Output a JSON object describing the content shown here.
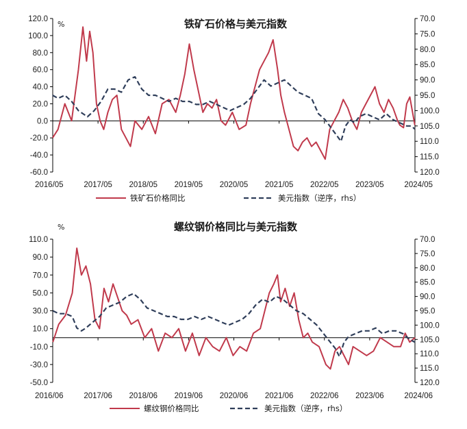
{
  "colors": {
    "primary_series": "#C0394B",
    "secondary_series": "#2F3E5A",
    "axis": "#000000"
  },
  "chart_data": [
    {
      "type": "line",
      "title": "铁矿石价格与美元指数",
      "left_unit": "%",
      "left_ylim": [
        -60,
        120
      ],
      "left_ticks": [
        "-60.0",
        "-40.0",
        "-20.0",
        "0.0",
        "20.0",
        "40.0",
        "60.0",
        "80.0",
        "100.0",
        "120.0"
      ],
      "right_ylim": [
        70,
        120
      ],
      "right_inverted": true,
      "right_ticks": [
        "70.0",
        "75.0",
        "80.0",
        "85.0",
        "90.0",
        "95.0",
        "100.0",
        "105.0",
        "110.0",
        "115.0",
        "120.0"
      ],
      "x_ticks": [
        "2016/05",
        "2017/05",
        "2018/05",
        "2019/05",
        "2020/05",
        "2021/05",
        "2022/05",
        "2023/05",
        "2024/05"
      ],
      "x_range": [
        2016.333,
        2024.333
      ],
      "legend": [
        "铁矿石价格同比",
        "美元指数（逆序，rhs）"
      ],
      "series": [
        {
          "name": "铁矿石价格同比",
          "axis": "left",
          "style": "solid",
          "x": [
            2016.33,
            2016.45,
            2016.6,
            2016.75,
            2016.9,
            2017.0,
            2017.08,
            2017.15,
            2017.22,
            2017.3,
            2017.38,
            2017.46,
            2017.55,
            2017.65,
            2017.75,
            2017.85,
            2017.95,
            2018.05,
            2018.15,
            2018.3,
            2018.45,
            2018.6,
            2018.75,
            2018.9,
            2019.05,
            2019.15,
            2019.25,
            2019.35,
            2019.45,
            2019.55,
            2019.65,
            2019.75,
            2019.85,
            2019.95,
            2020.05,
            2020.15,
            2020.3,
            2020.45,
            2020.6,
            2020.7,
            2020.8,
            2020.9,
            2021.0,
            2021.1,
            2021.2,
            2021.3,
            2021.37,
            2021.45,
            2021.55,
            2021.65,
            2021.75,
            2021.85,
            2021.95,
            2022.05,
            2022.15,
            2022.25,
            2022.35,
            2022.45,
            2022.55,
            2022.65,
            2022.75,
            2022.85,
            2022.95,
            2023.05,
            2023.15,
            2023.25,
            2023.35,
            2023.45,
            2023.55,
            2023.65,
            2023.75,
            2023.85,
            2023.95,
            2024.0,
            2024.08,
            2024.15,
            2024.22,
            2024.28,
            2024.33
          ],
          "values": [
            -20,
            -10,
            20,
            0,
            60,
            110,
            70,
            105,
            80,
            20,
            0,
            -10,
            10,
            25,
            30,
            -10,
            -20,
            -30,
            0,
            -10,
            5,
            -15,
            20,
            25,
            10,
            30,
            55,
            90,
            60,
            35,
            10,
            20,
            15,
            25,
            0,
            -5,
            10,
            -10,
            -5,
            20,
            40,
            60,
            70,
            80,
            95,
            60,
            30,
            10,
            -10,
            -30,
            -35,
            -25,
            -20,
            -30,
            -25,
            -35,
            -45,
            -10,
            0,
            10,
            25,
            15,
            0,
            -10,
            10,
            20,
            30,
            40,
            20,
            10,
            25,
            15,
            0,
            -5,
            -8,
            20,
            28,
            10,
            -5
          ]
        },
        {
          "name": "美元指数（逆序，rhs）",
          "axis": "right",
          "style": "dashed",
          "x": [
            2016.33,
            2016.45,
            2016.6,
            2016.75,
            2016.9,
            2017.0,
            2017.1,
            2017.25,
            2017.4,
            2017.55,
            2017.7,
            2017.85,
            2018.0,
            2018.15,
            2018.3,
            2018.45,
            2018.6,
            2018.75,
            2018.9,
            2019.05,
            2019.2,
            2019.35,
            2019.5,
            2019.65,
            2019.8,
            2019.95,
            2020.1,
            2020.25,
            2020.4,
            2020.55,
            2020.7,
            2020.85,
            2021.0,
            2021.15,
            2021.3,
            2021.45,
            2021.6,
            2021.75,
            2021.9,
            2022.05,
            2022.2,
            2022.35,
            2022.5,
            2022.6,
            2022.7,
            2022.8,
            2022.9,
            2023.0,
            2023.1,
            2023.25,
            2023.4,
            2023.55,
            2023.7,
            2023.85,
            2024.0,
            2024.15,
            2024.25,
            2024.33
          ],
          "values": [
            95,
            96,
            95,
            97,
            100,
            101,
            102,
            100,
            97,
            93,
            93,
            94,
            90,
            89,
            93,
            95,
            95,
            96,
            97,
            96,
            97,
            97,
            98,
            98,
            97,
            98,
            99,
            100,
            99,
            98,
            96,
            93,
            90,
            92,
            91,
            90,
            92,
            94,
            95,
            96,
            101,
            103,
            106,
            108,
            110,
            105,
            103,
            104,
            102,
            101,
            102,
            103,
            101,
            103,
            104,
            105,
            105,
            106
          ]
        }
      ]
    },
    {
      "type": "line",
      "title": "螺纹钢价格同比与美元指数",
      "left_unit": "%",
      "left_ylim": [
        -50,
        110
      ],
      "left_ticks": [
        "-50.0",
        "-30.0",
        "-10.0",
        "10.0",
        "30.0",
        "50.0",
        "70.0",
        "90.0",
        "110.0"
      ],
      "right_ylim": [
        70,
        120
      ],
      "right_inverted": true,
      "right_ticks": [
        "70.0",
        "75.0",
        "80.0",
        "85.0",
        "90.0",
        "95.0",
        "100.0",
        "105.0",
        "110.0",
        "115.0",
        "120.0"
      ],
      "x_ticks": [
        "2016/06",
        "2017/06",
        "2018/06",
        "2019/06",
        "2020/06",
        "2021/06",
        "2022/06",
        "2023/06",
        "2024/06"
      ],
      "x_range": [
        2016.417,
        2024.417
      ],
      "legend": [
        "螺纹钢价格同比",
        "美元指数（逆序，rhs）"
      ],
      "series": [
        {
          "name": "螺纹钢价格同比",
          "axis": "left",
          "style": "solid",
          "x": [
            2016.42,
            2016.55,
            2016.7,
            2016.85,
            2016.95,
            2017.05,
            2017.15,
            2017.25,
            2017.35,
            2017.45,
            2017.55,
            2017.65,
            2017.75,
            2017.85,
            2017.95,
            2018.05,
            2018.15,
            2018.3,
            2018.45,
            2018.6,
            2018.75,
            2018.9,
            2019.05,
            2019.2,
            2019.35,
            2019.5,
            2019.65,
            2019.8,
            2019.95,
            2020.1,
            2020.25,
            2020.4,
            2020.55,
            2020.7,
            2020.85,
            2021.0,
            2021.1,
            2021.2,
            2021.3,
            2021.38,
            2021.45,
            2021.55,
            2021.65,
            2021.75,
            2021.85,
            2021.95,
            2022.05,
            2022.15,
            2022.3,
            2022.45,
            2022.55,
            2022.65,
            2022.75,
            2022.85,
            2022.95,
            2023.05,
            2023.2,
            2023.35,
            2023.5,
            2023.65,
            2023.8,
            2023.95,
            2024.1,
            2024.2,
            2024.3,
            2024.42
          ],
          "values": [
            -5,
            15,
            25,
            50,
            100,
            70,
            80,
            60,
            20,
            10,
            55,
            40,
            60,
            45,
            30,
            25,
            15,
            20,
            0,
            10,
            -15,
            5,
            0,
            10,
            -15,
            5,
            -20,
            0,
            -10,
            -15,
            0,
            -20,
            -10,
            -15,
            5,
            10,
            30,
            50,
            60,
            70,
            40,
            55,
            35,
            50,
            20,
            0,
            5,
            -5,
            -10,
            -30,
            -35,
            -15,
            -10,
            -20,
            -30,
            -10,
            -15,
            -20,
            -15,
            0,
            -5,
            -10,
            -10,
            5,
            -5,
            0
          ]
        },
        {
          "name": "美元指数（逆序，rhs）",
          "axis": "right",
          "style": "dashed",
          "x": [
            2016.42,
            2016.55,
            2016.7,
            2016.85,
            2016.95,
            2017.05,
            2017.15,
            2017.3,
            2017.45,
            2017.6,
            2017.75,
            2017.9,
            2018.05,
            2018.2,
            2018.35,
            2018.5,
            2018.65,
            2018.8,
            2018.95,
            2019.1,
            2019.25,
            2019.4,
            2019.55,
            2019.7,
            2019.85,
            2020.0,
            2020.15,
            2020.3,
            2020.45,
            2020.6,
            2020.75,
            2020.9,
            2021.05,
            2021.2,
            2021.35,
            2021.5,
            2021.65,
            2021.8,
            2021.95,
            2022.1,
            2022.25,
            2022.4,
            2022.55,
            2022.65,
            2022.75,
            2022.85,
            2022.95,
            2023.1,
            2023.25,
            2023.4,
            2023.55,
            2023.7,
            2023.85,
            2024.0,
            2024.15,
            2024.3,
            2024.42
          ],
          "values": [
            95,
            96,
            96,
            97,
            101,
            102,
            101,
            99,
            97,
            94,
            93,
            92,
            90,
            89,
            91,
            94,
            95,
            96,
            97,
            97,
            98,
            98,
            97,
            98,
            97,
            98,
            99,
            100,
            99,
            98,
            96,
            93,
            91,
            92,
            90,
            91,
            93,
            95,
            96,
            98,
            100,
            103,
            106,
            108,
            111,
            106,
            104,
            103,
            102,
            102,
            101,
            103,
            102,
            102,
            103,
            105,
            106
          ]
        }
      ]
    }
  ]
}
